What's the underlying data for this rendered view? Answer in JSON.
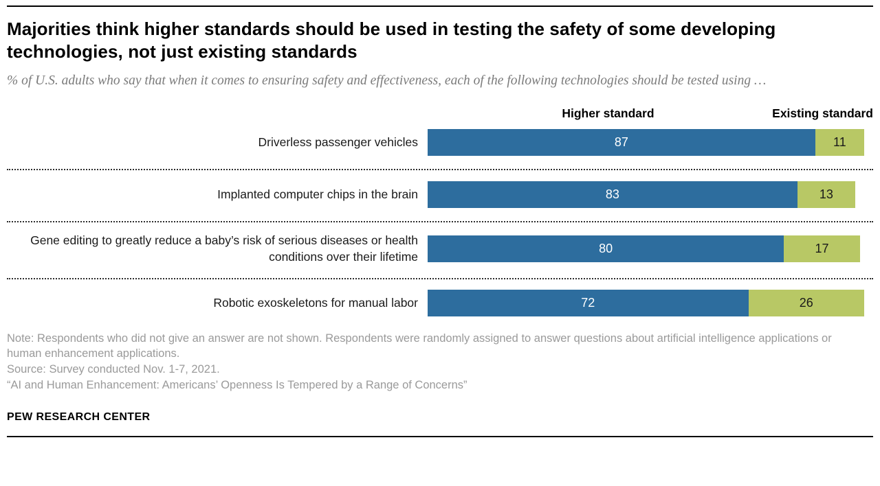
{
  "chart_data": {
    "type": "bar",
    "title": "Majorities think higher standards should be used in testing the safety of some developing technologies, not just existing standards",
    "subtitle": "% of U.S. adults who say that when it comes to ensuring safety and effectiveness, each of the following technologies should be tested using …",
    "series_headers": [
      "Higher standard",
      "Existing standard"
    ],
    "categories": [
      "Driverless passenger vehicles",
      "Implanted computer chips in the brain",
      "Gene editing to greatly reduce a baby’s risk of serious diseases or health conditions over their lifetime",
      "Robotic exoskeletons for manual labor"
    ],
    "series": [
      {
        "name": "Higher standard",
        "values": [
          87,
          83,
          80,
          72
        ]
      },
      {
        "name": "Existing standard",
        "values": [
          11,
          13,
          17,
          26
        ]
      }
    ],
    "xlim": [
      0,
      100
    ],
    "layout": {
      "orientation": "horizontal",
      "stacked": true,
      "grid": false,
      "legend_position": "top"
    },
    "colors": {
      "higher": "#2d6d9e",
      "existing": "#b8c865"
    },
    "note": "Note: Respondents who did not give an answer are not shown. Respondents were randomly assigned to answer questions about artificial intelligence applications or human enhancement applications.",
    "source": "Source: Survey conducted Nov. 1-7, 2021.",
    "report": "“AI and Human Enhancement: Americans’ Openness Is Tempered by a Range of Concerns”"
  },
  "footer": "PEW RESEARCH CENTER"
}
